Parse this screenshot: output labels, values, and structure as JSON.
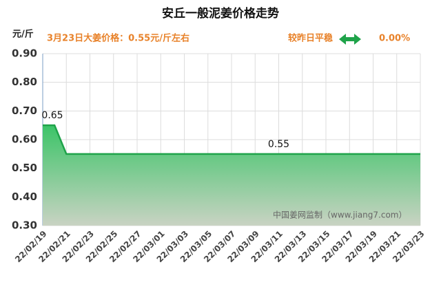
{
  "chart_data": {
    "type": "area",
    "title": "安丘一般泥姜价格走势",
    "y_label": "元/斤",
    "subtitle": "3月23日大姜价格：0.55元/斤左右",
    "change_text": "较昨日平稳",
    "change_value": "0.00%",
    "watermark": "中国姜网监制（www.jiang7.com）",
    "categories": [
      "22/02/19",
      null,
      "22/02/21",
      null,
      "22/02/23",
      null,
      "22/02/25",
      null,
      "22/02/27",
      null,
      "22/03/01",
      null,
      "22/03/03",
      null,
      "22/03/05",
      null,
      "22/03/07",
      null,
      "22/03/09",
      null,
      "22/03/11",
      null,
      "22/03/13",
      null,
      "22/03/15",
      null,
      "22/03/17",
      null,
      "22/03/19",
      null,
      "22/03/21",
      null,
      "22/03/23"
    ],
    "values": [
      0.65,
      0.65,
      0.55,
      0.55,
      0.55,
      0.55,
      0.55,
      0.55,
      0.55,
      0.55,
      0.55,
      0.55,
      0.55,
      0.55,
      0.55,
      0.55,
      0.55,
      0.55,
      0.55,
      0.55,
      0.55,
      0.55,
      0.55,
      0.55,
      0.55,
      0.55,
      0.55,
      0.55,
      0.55,
      0.55,
      0.55,
      0.55,
      0.55
    ],
    "value_labels": [
      "0.65",
      null,
      null,
      null,
      null,
      null,
      null,
      null,
      null,
      null,
      null,
      null,
      null,
      null,
      null,
      null,
      null,
      null,
      null,
      null,
      "0.55",
      null,
      null,
      null,
      null,
      null,
      null,
      null,
      null,
      null,
      null,
      null,
      null
    ],
    "color": "#1fa34a",
    "ylim": [
      0.3,
      0.9
    ],
    "yticks": [
      {
        "value": 0.3,
        "label": "0.30"
      },
      {
        "value": 0.4,
        "label": "0.40"
      },
      {
        "value": 0.5,
        "label": "0.50"
      },
      {
        "value": 0.6,
        "label": "0.60"
      },
      {
        "value": 0.7,
        "label": "0.70"
      },
      {
        "value": 0.8,
        "label": "0.80"
      },
      {
        "value": 0.9,
        "label": "0.90"
      }
    ],
    "grid": true
  }
}
